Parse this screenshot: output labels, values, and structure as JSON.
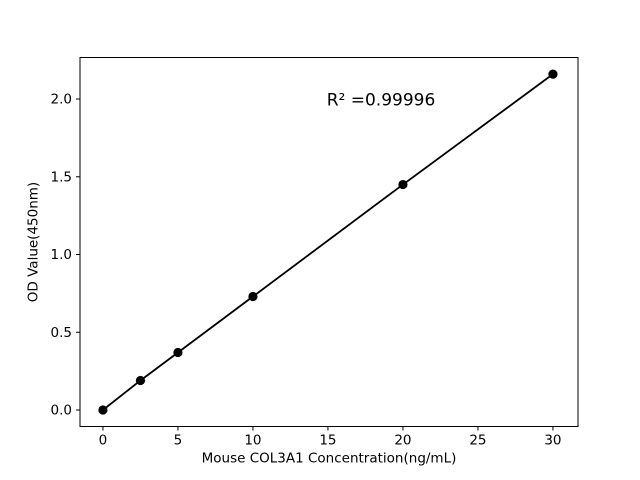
{
  "chart_data": {
    "type": "scatter",
    "x": [
      0,
      2.5,
      5,
      10,
      20,
      30
    ],
    "y": [
      0.0,
      0.19,
      0.37,
      0.73,
      1.45,
      2.16
    ],
    "title": "",
    "xlabel": "Mouse COL3A1 Concentration(ng/mL)",
    "ylabel": "OD Value(450nm)",
    "annotation": "R² =0.99996",
    "xticks": [
      0,
      5,
      10,
      15,
      20,
      25,
      30
    ],
    "yticks": [
      0.0,
      0.5,
      1.0,
      1.5,
      2.0
    ],
    "xlim": [
      -1.53,
      31.67
    ],
    "ylim": [
      -0.106,
      2.267
    ],
    "grid": false,
    "legend": "none",
    "line_color": "#000000",
    "marker_color": "#000000",
    "axis_color": "#000000",
    "background_color": "#ffffff"
  }
}
